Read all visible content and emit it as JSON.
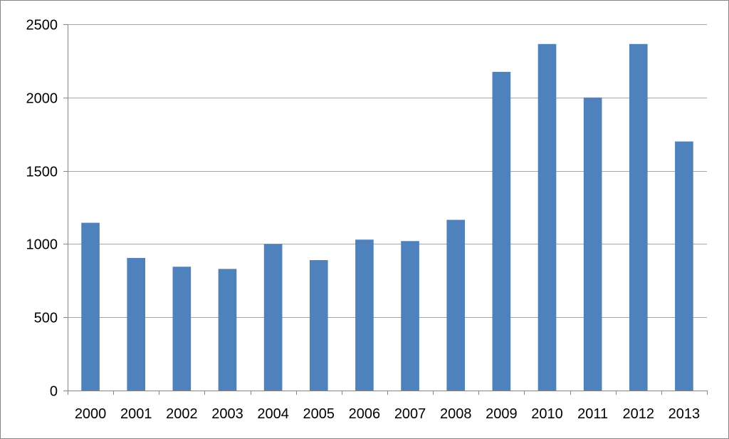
{
  "chart_data": {
    "type": "bar",
    "categories": [
      "2000",
      "2001",
      "2002",
      "2003",
      "2004",
      "2005",
      "2006",
      "2007",
      "2008",
      "2009",
      "2010",
      "2011",
      "2012",
      "2013"
    ],
    "values": [
      1145,
      905,
      845,
      830,
      1000,
      890,
      1030,
      1020,
      1165,
      2175,
      2365,
      2000,
      2365,
      1700
    ],
    "ylim": [
      0,
      2500
    ],
    "yticks": [
      0,
      500,
      1000,
      1500,
      2000,
      2500
    ],
    "grid": true,
    "legend": "none",
    "title": "",
    "xlabel": "",
    "ylabel": "",
    "colors": {
      "bar": "#4f81bd",
      "grid": "#a6a6a6",
      "axis": "#868686",
      "border": "#868686"
    }
  }
}
